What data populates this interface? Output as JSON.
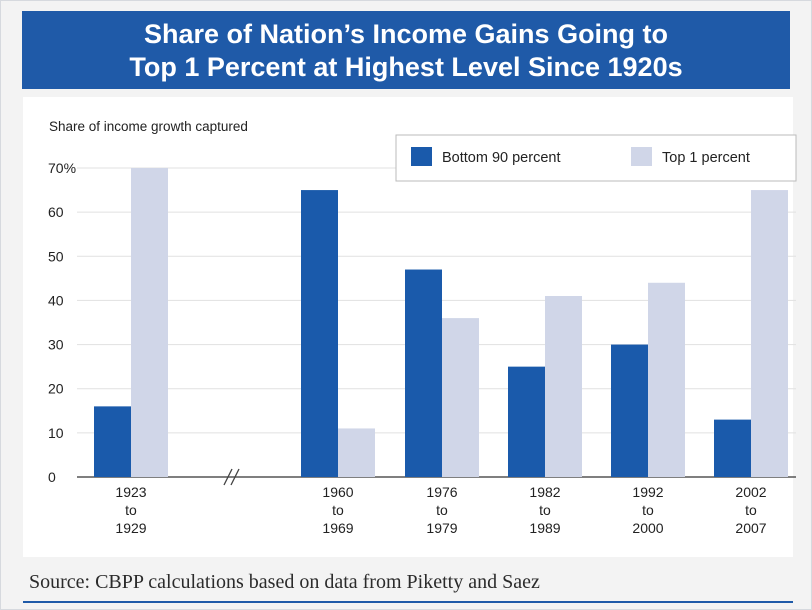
{
  "title_lines": [
    "Share of Nation’s Income Gains Going to",
    "Top 1 Percent at Highest Level Since 1920s"
  ],
  "source": "Source: CBPP calculations based on data from Piketty and Saez",
  "colors": {
    "banner": "#1f5aa8",
    "bottom90": "#1a5aab",
    "top1": "#d0d6e8"
  },
  "chart_data": {
    "type": "bar",
    "title": "Share of Nation’s Income Gains Going to Top 1 Percent at Highest Level Since 1920s",
    "ylabel": "Share of income growth captured",
    "xlabel": "",
    "ylim": [
      0,
      70
    ],
    "yticks": [
      "0",
      "10",
      "20",
      "30",
      "40",
      "50",
      "60",
      "70%"
    ],
    "grid": true,
    "legend": "top-right",
    "axis_break_after": 0,
    "categories": [
      [
        "1923",
        "to",
        "1929"
      ],
      [
        "1960",
        "to",
        "1969"
      ],
      [
        "1976",
        "to",
        "1979"
      ],
      [
        "1982",
        "to",
        "1989"
      ],
      [
        "1992",
        "to",
        "2000"
      ],
      [
        "2002",
        "to",
        "2007"
      ]
    ],
    "series": [
      {
        "name": "Bottom 90 percent",
        "values": [
          16,
          65,
          47,
          25,
          30,
          13
        ]
      },
      {
        "name": "Top 1 percent",
        "values": [
          70,
          11,
          36,
          41,
          44,
          65
        ]
      }
    ]
  }
}
